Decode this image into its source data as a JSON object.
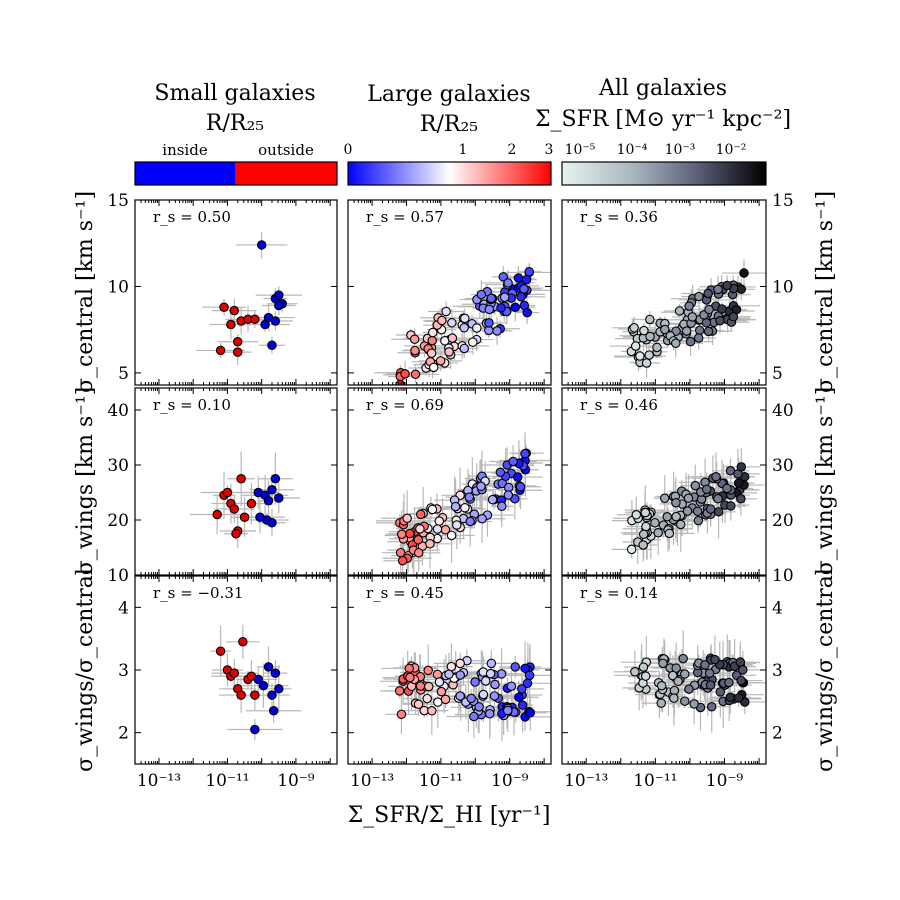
{
  "chart_data": {
    "type": "scatter",
    "xlabel": "Σ_SFR/Σ_HI [yr⁻¹]",
    "x_scale": "log",
    "xlim": [
      -13.7,
      -7.8
    ],
    "xticks": [
      {
        "v": -13,
        "label": "10⁻¹³"
      },
      {
        "v": -11,
        "label": "10⁻¹¹"
      },
      {
        "v": -9,
        "label": "10⁻⁹"
      }
    ],
    "columns": [
      {
        "title": "Small galaxies",
        "cbar_label": "R/R₂₅",
        "cbar_type": "binary",
        "cbar_left": "inside",
        "cbar_right": "outside",
        "cbar_colors": [
          "#0000ff",
          "#ff0000"
        ]
      },
      {
        "title": "Large galaxies",
        "cbar_label": "R/R₂₅",
        "cbar_type": "bwr",
        "cbar_ticks": [
          "0",
          "1",
          "2",
          "3"
        ],
        "cbar_colors": [
          "#0000ff",
          "#ffffff",
          "#ff0000"
        ]
      },
      {
        "title": "All galaxies",
        "cbar_label": "Σ_SFR [M⊙ yr⁻¹ kpc⁻²]",
        "cbar_type": "bone_r",
        "cbar_ticks": [
          "10⁻⁵",
          "10⁻⁴",
          "10⁻³",
          "10⁻²"
        ],
        "cbar_colors": [
          "#e6f2ef",
          "#8a96a8",
          "#000000"
        ]
      }
    ],
    "rows": [
      {
        "ylabel": "σ_central [km s⁻¹]",
        "ylim": [
          4.3,
          15
        ],
        "yticks": [
          "5",
          "10",
          "15"
        ],
        "ytick_values": [
          5,
          10,
          15
        ]
      },
      {
        "ylabel": "σ_wings [km s⁻¹]",
        "ylim": [
          10,
          44
        ],
        "yticks": [
          "10",
          "20",
          "30",
          "40"
        ],
        "ytick_values": [
          10,
          20,
          30,
          40
        ]
      },
      {
        "ylabel": "σ_wings/σ_central",
        "ylim": [
          1.5,
          4.5
        ],
        "yticks": [
          "2",
          "3",
          "4"
        ],
        "ytick_values": [
          2,
          3,
          4
        ]
      }
    ],
    "rs_values": [
      [
        "r_s = 0.50",
        "r_s = 0.57",
        "r_s = 0.36"
      ],
      [
        "r_s = 0.10",
        "r_s = 0.69",
        "r_s = 0.46"
      ],
      [
        "r_s = −0.31",
        "r_s = 0.45",
        "r_s = 0.14"
      ]
    ],
    "panels": [
      [
        {
          "points": [
            {
              "x": -11.1,
              "y": 8.8,
              "c": 1
            },
            {
              "x": -10.9,
              "y": 7.8,
              "c": 1
            },
            {
              "x": -10.8,
              "y": 8.6,
              "c": 1
            },
            {
              "x": -10.6,
              "y": 8.0,
              "c": 1
            },
            {
              "x": -10.4,
              "y": 8.1,
              "c": 1
            },
            {
              "x": -10.2,
              "y": 8.1,
              "c": 1
            },
            {
              "x": -11.2,
              "y": 6.3,
              "c": 1
            },
            {
              "x": -10.7,
              "y": 6.8,
              "c": 1
            },
            {
              "x": -10.7,
              "y": 6.2,
              "c": 1
            },
            {
              "x": -10.0,
              "y": 12.4,
              "c": 0
            },
            {
              "x": -9.6,
              "y": 9.3,
              "c": 0
            },
            {
              "x": -9.5,
              "y": 9.5,
              "c": 0
            },
            {
              "x": -9.4,
              "y": 9.0,
              "c": 0
            },
            {
              "x": -9.8,
              "y": 8.2,
              "c": 0
            },
            {
              "x": -9.6,
              "y": 8.0,
              "c": 0
            },
            {
              "x": -9.9,
              "y": 7.8,
              "c": 0
            },
            {
              "x": -9.7,
              "y": 6.6,
              "c": 0
            },
            {
              "x": -9.5,
              "y": 8.9,
              "c": 0
            }
          ]
        },
        {
          "points": []
        },
        {
          "points": []
        }
      ],
      [
        {
          "points": [
            {
              "x": -11.3,
              "y": 21.0,
              "c": 1
            },
            {
              "x": -11.1,
              "y": 24.5,
              "c": 1
            },
            {
              "x": -11.0,
              "y": 25.0,
              "c": 1
            },
            {
              "x": -10.9,
              "y": 23.0,
              "c": 1
            },
            {
              "x": -10.8,
              "y": 22.0,
              "c": 1
            },
            {
              "x": -10.7,
              "y": 18.0,
              "c": 1
            },
            {
              "x": -10.75,
              "y": 17.5,
              "c": 1
            },
            {
              "x": -10.6,
              "y": 27.5,
              "c": 1
            },
            {
              "x": -10.5,
              "y": 20.5,
              "c": 1
            },
            {
              "x": -10.3,
              "y": 23.0,
              "c": 1
            },
            {
              "x": -10.1,
              "y": 25.0,
              "c": 0
            },
            {
              "x": -9.9,
              "y": 24.5,
              "c": 0
            },
            {
              "x": -9.8,
              "y": 23.5,
              "c": 0
            },
            {
              "x": -9.7,
              "y": 25.5,
              "c": 0
            },
            {
              "x": -9.6,
              "y": 27.5,
              "c": 0
            },
            {
              "x": -9.5,
              "y": 24.0,
              "c": 0
            },
            {
              "x": -9.85,
              "y": 20.0,
              "c": 0
            },
            {
              "x": -9.7,
              "y": 19.5,
              "c": 0
            },
            {
              "x": -10.05,
              "y": 20.5,
              "c": 0
            }
          ]
        },
        {
          "points": []
        },
        {
          "points": []
        }
      ],
      [
        {
          "points": [
            {
              "x": -11.2,
              "y": 3.3,
              "c": 1
            },
            {
              "x": -11.0,
              "y": 3.0,
              "c": 1
            },
            {
              "x": -10.9,
              "y": 2.9,
              "c": 1
            },
            {
              "x": -10.8,
              "y": 2.95,
              "c": 1
            },
            {
              "x": -10.7,
              "y": 2.7,
              "c": 1
            },
            {
              "x": -10.6,
              "y": 2.6,
              "c": 1
            },
            {
              "x": -10.55,
              "y": 3.45,
              "c": 1
            },
            {
              "x": -10.4,
              "y": 2.85,
              "c": 1
            },
            {
              "x": -10.3,
              "y": 2.9,
              "c": 1
            },
            {
              "x": -10.2,
              "y": 2.6,
              "c": 1
            },
            {
              "x": -10.1,
              "y": 2.85,
              "c": 0
            },
            {
              "x": -9.95,
              "y": 2.75,
              "c": 0
            },
            {
              "x": -9.8,
              "y": 3.05,
              "c": 0
            },
            {
              "x": -9.7,
              "y": 2.6,
              "c": 0
            },
            {
              "x": -9.6,
              "y": 2.95,
              "c": 0
            },
            {
              "x": -9.5,
              "y": 2.7,
              "c": 0
            },
            {
              "x": -9.65,
              "y": 2.35,
              "c": 0
            },
            {
              "x": -10.2,
              "y": 2.05,
              "c": 0
            }
          ]
        },
        {
          "points": []
        },
        {
          "points": []
        }
      ]
    ]
  }
}
